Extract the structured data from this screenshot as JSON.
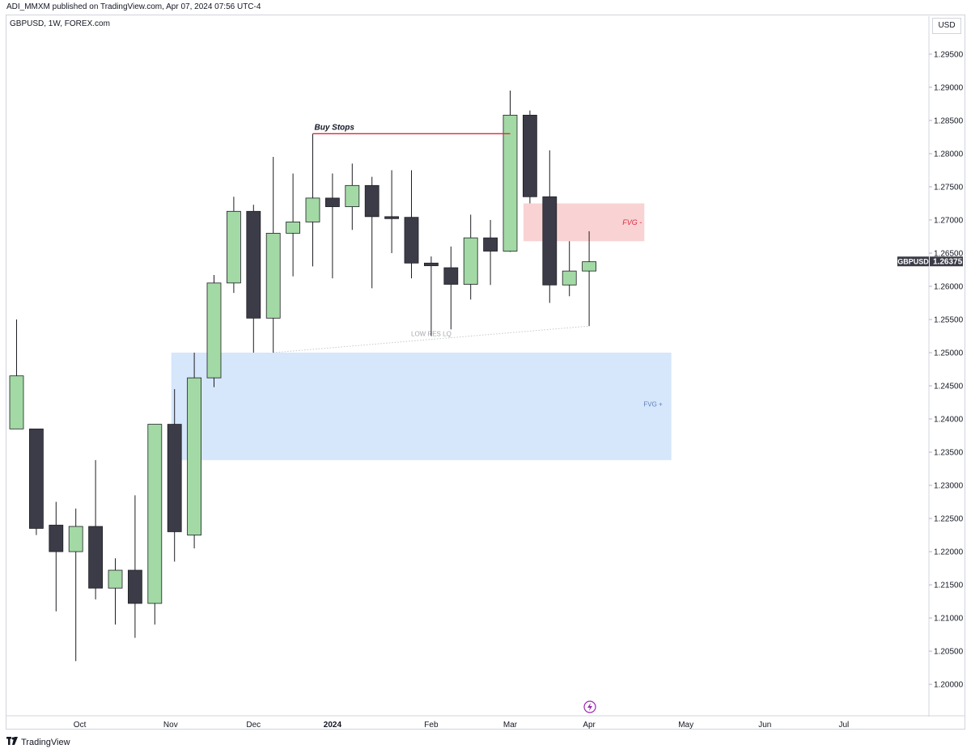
{
  "header": {
    "published": "ADI_MMXM published on TradingView.com, Apr 07, 2024 07:56 UTC-4",
    "symbol_line": "GBPUSD, 1W, FOREX.com",
    "currency": "USD"
  },
  "footer": {
    "brand": "TradingView"
  },
  "colors": {
    "bull": "#a3d9a5",
    "bear": "#3b3c47",
    "wick": "#1e1e24",
    "fvg_plus_fill": "#d6e6fb",
    "fvg_minus_fill": "#f9d3d3",
    "buy_stops_line": "#e0283c",
    "price_label_bg": "#3b3c47",
    "lowres_line": "#c6c8ce",
    "lightning": "#9c27b0"
  },
  "chart_data": {
    "type": "candlestick",
    "symbol": "GBPUSD",
    "interval": "1W",
    "ylim": [
      1.1955,
      1.2995
    ],
    "y_ticks": [
      "1.29500",
      "1.29000",
      "1.28500",
      "1.28000",
      "1.27500",
      "1.27000",
      "1.26500",
      "1.26000",
      "1.25500",
      "1.25000",
      "1.24500",
      "1.24000",
      "1.23500",
      "1.23000",
      "1.22500",
      "1.22000",
      "1.21500",
      "1.21000",
      "1.20500",
      "1.20000"
    ],
    "x_labels": [
      {
        "label": "Oct",
        "index": 3.2
      },
      {
        "label": "Nov",
        "index": 7.8
      },
      {
        "label": "Dec",
        "index": 12.0
      },
      {
        "label": "2024",
        "index": 16.0
      },
      {
        "label": "Feb",
        "index": 21.0
      },
      {
        "label": "Mar",
        "index": 25.0
      },
      {
        "label": "Apr",
        "index": 29.0
      },
      {
        "label": "May",
        "index": 33.9
      },
      {
        "label": "Jun",
        "index": 37.9
      },
      {
        "label": "Jul",
        "index": 41.9
      }
    ],
    "candles": [
      {
        "o": 1.2385,
        "h": 1.255,
        "l": 1.2385,
        "c": 1.2465
      },
      {
        "o": 1.2385,
        "h": 1.2385,
        "l": 1.2225,
        "c": 1.2235
      },
      {
        "o": 1.224,
        "h": 1.2275,
        "l": 1.211,
        "c": 1.22
      },
      {
        "o": 1.22,
        "h": 1.2265,
        "l": 1.2035,
        "c": 1.2238
      },
      {
        "o": 1.2238,
        "h": 1.2338,
        "l": 1.2128,
        "c": 1.2145
      },
      {
        "o": 1.2145,
        "h": 1.219,
        "l": 1.209,
        "c": 1.2172
      },
      {
        "o": 1.2172,
        "h": 1.2285,
        "l": 1.207,
        "c": 1.2122
      },
      {
        "o": 1.2122,
        "h": 1.2392,
        "l": 1.209,
        "c": 1.2392
      },
      {
        "o": 1.2392,
        "h": 1.2445,
        "l": 1.2185,
        "c": 1.223
      },
      {
        "o": 1.2225,
        "h": 1.25,
        "l": 1.2205,
        "c": 1.2462
      },
      {
        "o": 1.2462,
        "h": 1.2617,
        "l": 1.2448,
        "c": 1.2605
      },
      {
        "o": 1.2605,
        "h": 1.2735,
        "l": 1.259,
        "c": 1.2713
      },
      {
        "o": 1.2713,
        "h": 1.2723,
        "l": 1.25,
        "c": 1.2552
      },
      {
        "o": 1.2552,
        "h": 1.2795,
        "l": 1.25,
        "c": 1.268
      },
      {
        "o": 1.268,
        "h": 1.277,
        "l": 1.2615,
        "c": 1.2697
      },
      {
        "o": 1.2697,
        "h": 1.283,
        "l": 1.263,
        "c": 1.2733
      },
      {
        "o": 1.2733,
        "h": 1.277,
        "l": 1.2612,
        "c": 1.272
      },
      {
        "o": 1.272,
        "h": 1.2785,
        "l": 1.2685,
        "c": 1.2752
      },
      {
        "o": 1.2752,
        "h": 1.2765,
        "l": 1.2597,
        "c": 1.2705
      },
      {
        "o": 1.2705,
        "h": 1.2775,
        "l": 1.265,
        "c": 1.2702
      },
      {
        "o": 1.2704,
        "h": 1.2775,
        "l": 1.2612,
        "c": 1.2635
      },
      {
        "o": 1.2635,
        "h": 1.2645,
        "l": 1.2525,
        "c": 1.2631
      },
      {
        "o": 1.2628,
        "h": 1.266,
        "l": 1.2535,
        "c": 1.2603
      },
      {
        "o": 1.2603,
        "h": 1.2708,
        "l": 1.258,
        "c": 1.2673
      },
      {
        "o": 1.2673,
        "h": 1.27,
        "l": 1.2602,
        "c": 1.2653
      },
      {
        "o": 1.2653,
        "h": 1.2895,
        "l": 1.2652,
        "c": 1.2858
      },
      {
        "o": 1.2858,
        "h": 1.2865,
        "l": 1.2725,
        "c": 1.2735
      },
      {
        "o": 1.2735,
        "h": 1.2805,
        "l": 1.2575,
        "c": 1.2602
      },
      {
        "o": 1.2602,
        "h": 1.2668,
        "l": 1.2585,
        "c": 1.2623
      },
      {
        "o": 1.2623,
        "h": 1.2683,
        "l": 1.254,
        "c": 1.2637
      }
    ],
    "last_price": {
      "symbol": "GBPUSD",
      "value": "1.26375"
    },
    "annotations": {
      "buy_stops": {
        "label": "Buy Stops",
        "price": 1.283,
        "from_index": 15,
        "to_index": 25
      },
      "fvg_minus": {
        "label": "FVG -",
        "top": 1.2725,
        "bottom": 1.2668,
        "from_index": 26,
        "to_index": 32
      },
      "fvg_plus": {
        "label": "FVG +",
        "top": 1.25,
        "bottom": 1.2338,
        "from_index": 8,
        "to_index": 33
      },
      "low_res_lq": {
        "label": "LOW RES LQ",
        "from_index": 13,
        "from_price": 1.25,
        "to_index": 29,
        "to_price": 1.254
      }
    }
  }
}
